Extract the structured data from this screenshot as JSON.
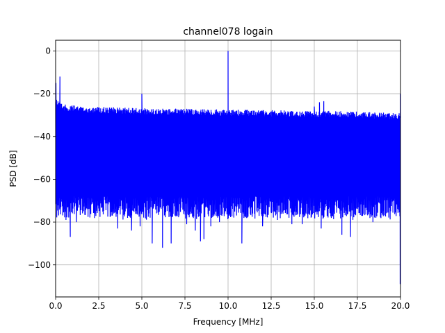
{
  "chart_data": {
    "type": "line",
    "title": "channel078 logain",
    "xlabel": "Frequency [MHz]",
    "ylabel": "PSD [dB]",
    "xlim": [
      0,
      20
    ],
    "ylim": [
      -115,
      5
    ],
    "x_ticks": [
      0,
      2.5,
      5,
      7.5,
      10,
      12.5,
      15,
      17.5,
      20
    ],
    "x_tick_labels": [
      "0.0",
      "2.5",
      "5.0",
      "7.5",
      "10.0",
      "12.5",
      "15.0",
      "17.5",
      "20.0"
    ],
    "y_ticks": [
      0,
      -20,
      -40,
      -60,
      -80,
      -100
    ],
    "y_tick_labels": [
      "0",
      "−20",
      "−40",
      "−60",
      "−80",
      "−100"
    ],
    "grid": true,
    "line_color": "#0000ff",
    "series": [
      {
        "noise_ceiling_x": [
          0,
          0.5,
          1,
          2,
          4,
          6,
          8,
          10,
          12,
          14,
          16,
          18,
          19.5,
          20
        ],
        "noise_ceiling_y": [
          -22,
          -25,
          -25.5,
          -26,
          -26.5,
          -27,
          -27,
          -27.5,
          -27.5,
          -28,
          -28,
          -28.5,
          -29,
          -29
        ],
        "noise_floor_typical": -73,
        "spikes": [
          {
            "x": 0.02,
            "y": -15
          },
          {
            "x": 0.25,
            "y": -12
          },
          {
            "x": 5.0,
            "y": -20
          },
          {
            "x": 10.0,
            "y": 0
          },
          {
            "x": 15.0,
            "y": -26
          },
          {
            "x": 15.3,
            "y": -24
          },
          {
            "x": 15.55,
            "y": -23.5
          },
          {
            "x": 19.99,
            "y": -20
          }
        ],
        "dips": [
          {
            "x": 0.85,
            "y": -87
          },
          {
            "x": 0.6,
            "y": -79
          },
          {
            "x": 1.2,
            "y": -80
          },
          {
            "x": 3.6,
            "y": -83
          },
          {
            "x": 4.4,
            "y": -84
          },
          {
            "x": 4.9,
            "y": -82
          },
          {
            "x": 5.6,
            "y": -90
          },
          {
            "x": 6.2,
            "y": -92
          },
          {
            "x": 6.7,
            "y": -90
          },
          {
            "x": 7.6,
            "y": -81
          },
          {
            "x": 8.1,
            "y": -84
          },
          {
            "x": 8.4,
            "y": -89
          },
          {
            "x": 8.6,
            "y": -88
          },
          {
            "x": 9.0,
            "y": -82
          },
          {
            "x": 9.5,
            "y": -80
          },
          {
            "x": 10.8,
            "y": -90
          },
          {
            "x": 12.0,
            "y": -82
          },
          {
            "x": 13.7,
            "y": -81
          },
          {
            "x": 14.3,
            "y": -81
          },
          {
            "x": 15.4,
            "y": -83
          },
          {
            "x": 16.6,
            "y": -86
          },
          {
            "x": 17.1,
            "y": -87
          },
          {
            "x": 18.4,
            "y": -80
          },
          {
            "x": 19.98,
            "y": -109
          }
        ]
      }
    ]
  }
}
